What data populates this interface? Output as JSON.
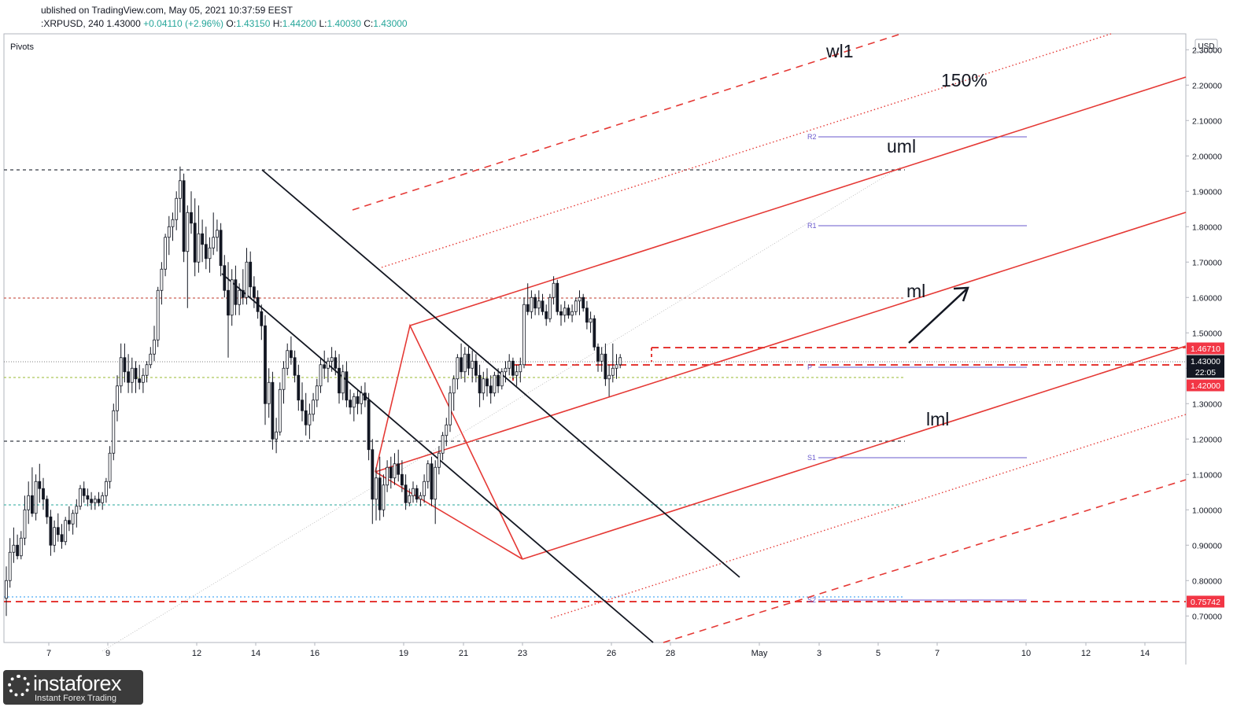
{
  "header": {
    "published": "ublished on TradingView.com, May 05, 2021 10:37:59 EEST",
    "symbol": ":XRPUSD, 240",
    "last": "1.43000",
    "change": "+0.04110 (+2.96%)",
    "o_label": "O:",
    "o": "1.43150",
    "h_label": "H:",
    "h": "1.44200",
    "l_label": "L:",
    "l": "1.40030",
    "c_label": "C:",
    "c": "1.43000"
  },
  "indicator_label": "Pivots",
  "currency": "USD",
  "logo": {
    "brand": "instaforex",
    "tagline": "Instant Forex Trading"
  },
  "chart_data": {
    "type": "candlestick",
    "ylim": [
      0.625,
      2.345
    ],
    "y_ticks": [
      0.7,
      0.8,
      0.9,
      1.0,
      1.1,
      1.2,
      1.3,
      1.4,
      1.5,
      1.6,
      1.7,
      1.8,
      1.9,
      2.0,
      2.1,
      2.2,
      2.3
    ],
    "y_tick_labels": [
      "0.70000",
      "0.80000",
      "0.90000",
      "1.00000",
      "1.10000",
      "1.20000",
      "1.30000",
      "1.40000",
      "1.50000",
      "1.60000",
      "1.70000",
      "1.80000",
      "1.90000",
      "2.00000",
      "2.10000",
      "2.20000",
      "2.30000"
    ],
    "x_tick_labels": [
      "7",
      "9",
      "12",
      "14",
      "16",
      "19",
      "21",
      "23",
      "26",
      "28",
      "May",
      "3",
      "5",
      "7",
      "10",
      "12",
      "14"
    ],
    "price_labels": [
      {
        "label": "1.46710",
        "value": 1.4671,
        "color": "#f23645",
        "text_color": "#ffffff"
      },
      {
        "label": "1.43000",
        "value": 1.43,
        "color": "#131722",
        "text_color": "#ffffff"
      },
      {
        "label": "22:05",
        "value": 1.403,
        "color": "#131722",
        "text_color": "#ffffff"
      },
      {
        "label": "1.42000",
        "value": 1.42,
        "color": "#f23645",
        "text_color": "#ffffff"
      },
      {
        "label": "0.75742",
        "value": 0.75742,
        "color": "#f23645",
        "text_color": "#ffffff"
      }
    ],
    "pivots": [
      {
        "label": "R2",
        "value": 2.06
      },
      {
        "label": "R1",
        "value": 1.81
      },
      {
        "label": "P",
        "value": 1.42
      },
      {
        "label": "S1",
        "value": 1.165
      },
      {
        "label": "S2",
        "value": 0.757
      }
    ],
    "annotations": [
      "wl1",
      "150%",
      "uml",
      "ml",
      "lml"
    ],
    "candles": [
      [
        0.75,
        0.84,
        0.7,
        0.8
      ],
      [
        0.8,
        0.92,
        0.78,
        0.88
      ],
      [
        0.88,
        0.95,
        0.85,
        0.9
      ],
      [
        0.9,
        0.93,
        0.86,
        0.87
      ],
      [
        0.87,
        0.94,
        0.86,
        0.92
      ],
      [
        0.92,
        1.04,
        0.9,
        1.0
      ],
      [
        1.0,
        1.08,
        0.96,
        1.04
      ],
      [
        1.04,
        1.12,
        0.98,
        0.99
      ],
      [
        0.99,
        1.1,
        0.97,
        1.08
      ],
      [
        1.08,
        1.13,
        1.02,
        1.06
      ],
      [
        1.06,
        1.09,
        1.0,
        1.03
      ],
      [
        1.03,
        1.04,
        0.96,
        0.98
      ],
      [
        0.98,
        1.0,
        0.87,
        0.9
      ],
      [
        0.9,
        0.97,
        0.88,
        0.95
      ],
      [
        0.95,
        0.99,
        0.91,
        0.93
      ],
      [
        0.93,
        0.96,
        0.89,
        0.91
      ],
      [
        0.91,
        0.98,
        0.9,
        0.97
      ],
      [
        0.97,
        1.01,
        0.94,
        0.96
      ],
      [
        0.96,
        1.0,
        0.93,
        0.99
      ],
      [
        0.99,
        1.03,
        0.95,
        1.01
      ],
      [
        1.01,
        1.07,
        1.0,
        1.06
      ],
      [
        1.06,
        1.08,
        1.02,
        1.04
      ],
      [
        1.04,
        1.06,
        1.01,
        1.03
      ],
      [
        1.03,
        1.05,
        1.0,
        1.02
      ],
      [
        1.02,
        1.04,
        1.0,
        1.03
      ],
      [
        1.03,
        1.05,
        1.01,
        1.02
      ],
      [
        1.02,
        1.05,
        1.0,
        1.04
      ],
      [
        1.04,
        1.09,
        1.02,
        1.08
      ],
      [
        1.08,
        1.18,
        1.06,
        1.16
      ],
      [
        1.16,
        1.3,
        1.14,
        1.28
      ],
      [
        1.28,
        1.38,
        1.25,
        1.35
      ],
      [
        1.35,
        1.47,
        1.33,
        1.43
      ],
      [
        1.43,
        1.47,
        1.36,
        1.39
      ],
      [
        1.39,
        1.44,
        1.33,
        1.36
      ],
      [
        1.36,
        1.43,
        1.33,
        1.4
      ],
      [
        1.4,
        1.42,
        1.33,
        1.37
      ],
      [
        1.37,
        1.41,
        1.34,
        1.36
      ],
      [
        1.36,
        1.4,
        1.33,
        1.38
      ],
      [
        1.38,
        1.42,
        1.36,
        1.41
      ],
      [
        1.41,
        1.46,
        1.4,
        1.44
      ],
      [
        1.44,
        1.52,
        1.42,
        1.48
      ],
      [
        1.48,
        1.63,
        1.46,
        1.62
      ],
      [
        1.62,
        1.7,
        1.58,
        1.68
      ],
      [
        1.68,
        1.78,
        1.66,
        1.77
      ],
      [
        1.77,
        1.83,
        1.72,
        1.8
      ],
      [
        1.8,
        1.84,
        1.76,
        1.82
      ],
      [
        1.82,
        1.9,
        1.79,
        1.88
      ],
      [
        1.88,
        1.97,
        1.84,
        1.93
      ],
      [
        1.93,
        1.95,
        1.7,
        1.73
      ],
      [
        1.73,
        1.86,
        1.57,
        1.84
      ],
      [
        1.84,
        1.9,
        1.78,
        1.81
      ],
      [
        1.81,
        1.88,
        1.66,
        1.7
      ],
      [
        1.7,
        1.86,
        1.67,
        1.78
      ],
      [
        1.78,
        1.82,
        1.7,
        1.75
      ],
      [
        1.75,
        1.8,
        1.68,
        1.71
      ],
      [
        1.71,
        1.77,
        1.67,
        1.74
      ],
      [
        1.74,
        1.84,
        1.72,
        1.77
      ],
      [
        1.77,
        1.82,
        1.73,
        1.79
      ],
      [
        1.79,
        1.81,
        1.66,
        1.69
      ],
      [
        1.69,
        1.72,
        1.6,
        1.62
      ],
      [
        1.62,
        1.7,
        1.43,
        1.55
      ],
      [
        1.55,
        1.68,
        1.52,
        1.65
      ],
      [
        1.65,
        1.69,
        1.55,
        1.58
      ],
      [
        1.58,
        1.64,
        1.55,
        1.62
      ],
      [
        1.62,
        1.68,
        1.58,
        1.6
      ],
      [
        1.6,
        1.74,
        1.58,
        1.7
      ],
      [
        1.7,
        1.73,
        1.6,
        1.63
      ],
      [
        1.63,
        1.66,
        1.57,
        1.6
      ],
      [
        1.6,
        1.62,
        1.54,
        1.56
      ],
      [
        1.56,
        1.58,
        1.48,
        1.52
      ],
      [
        1.52,
        1.55,
        1.24,
        1.3
      ],
      [
        1.3,
        1.4,
        1.26,
        1.36
      ],
      [
        1.36,
        1.39,
        1.17,
        1.2
      ],
      [
        1.2,
        1.26,
        1.16,
        1.22
      ],
      [
        1.22,
        1.36,
        1.21,
        1.34
      ],
      [
        1.34,
        1.42,
        1.3,
        1.4
      ],
      [
        1.4,
        1.47,
        1.38,
        1.45
      ],
      [
        1.45,
        1.49,
        1.41,
        1.43
      ],
      [
        1.43,
        1.45,
        1.36,
        1.38
      ],
      [
        1.38,
        1.41,
        1.28,
        1.31
      ],
      [
        1.31,
        1.36,
        1.25,
        1.28
      ],
      [
        1.28,
        1.33,
        1.21,
        1.24
      ],
      [
        1.24,
        1.3,
        1.2,
        1.27
      ],
      [
        1.27,
        1.33,
        1.25,
        1.31
      ],
      [
        1.31,
        1.37,
        1.29,
        1.35
      ],
      [
        1.35,
        1.43,
        1.33,
        1.41
      ],
      [
        1.41,
        1.45,
        1.37,
        1.4
      ],
      [
        1.4,
        1.43,
        1.36,
        1.42
      ],
      [
        1.42,
        1.46,
        1.39,
        1.43
      ],
      [
        1.43,
        1.45,
        1.38,
        1.4
      ],
      [
        1.4,
        1.44,
        1.3,
        1.33
      ],
      [
        1.33,
        1.41,
        1.31,
        1.39
      ],
      [
        1.39,
        1.42,
        1.29,
        1.31
      ],
      [
        1.31,
        1.34,
        1.27,
        1.29
      ],
      [
        1.29,
        1.33,
        1.25,
        1.32
      ],
      [
        1.32,
        1.34,
        1.27,
        1.3
      ],
      [
        1.3,
        1.35,
        1.27,
        1.33
      ],
      [
        1.33,
        1.36,
        1.29,
        1.31
      ],
      [
        1.31,
        1.33,
        1.14,
        1.17
      ],
      [
        1.17,
        1.2,
        0.96,
        1.03
      ],
      [
        1.03,
        1.12,
        0.97,
        1.09
      ],
      [
        1.09,
        1.15,
        0.97,
        1.0
      ],
      [
        1.0,
        1.1,
        0.98,
        1.07
      ],
      [
        1.07,
        1.14,
        1.05,
        1.12
      ],
      [
        1.12,
        1.15,
        1.06,
        1.09
      ],
      [
        1.09,
        1.16,
        1.07,
        1.13
      ],
      [
        1.13,
        1.17,
        1.08,
        1.1
      ],
      [
        1.1,
        1.14,
        1.05,
        1.07
      ],
      [
        1.07,
        1.1,
        1.0,
        1.02
      ],
      [
        1.02,
        1.06,
        1.01,
        1.04
      ],
      [
        1.04,
        1.08,
        1.02,
        1.06
      ],
      [
        1.06,
        1.07,
        1.02,
        1.03
      ],
      [
        1.03,
        1.05,
        1.01,
        1.04
      ],
      [
        1.04,
        1.1,
        1.02,
        1.08
      ],
      [
        1.08,
        1.14,
        1.06,
        1.13
      ],
      [
        1.13,
        1.15,
        1.01,
        1.03
      ],
      [
        1.03,
        1.14,
        0.96,
        1.12
      ],
      [
        1.12,
        1.18,
        1.1,
        1.16
      ],
      [
        1.16,
        1.22,
        1.14,
        1.21
      ],
      [
        1.21,
        1.26,
        1.18,
        1.24
      ],
      [
        1.24,
        1.35,
        1.22,
        1.33
      ],
      [
        1.33,
        1.38,
        1.28,
        1.37
      ],
      [
        1.37,
        1.44,
        1.34,
        1.43
      ],
      [
        1.43,
        1.47,
        1.37,
        1.39
      ],
      [
        1.39,
        1.46,
        1.36,
        1.44
      ],
      [
        1.44,
        1.46,
        1.38,
        1.4
      ],
      [
        1.4,
        1.45,
        1.36,
        1.42
      ],
      [
        1.42,
        1.44,
        1.36,
        1.38
      ],
      [
        1.38,
        1.41,
        1.29,
        1.33
      ],
      [
        1.33,
        1.39,
        1.31,
        1.37
      ],
      [
        1.37,
        1.4,
        1.32,
        1.35
      ],
      [
        1.35,
        1.38,
        1.3,
        1.33
      ],
      [
        1.33,
        1.39,
        1.32,
        1.38
      ],
      [
        1.38,
        1.4,
        1.33,
        1.35
      ],
      [
        1.35,
        1.4,
        1.34,
        1.39
      ],
      [
        1.39,
        1.42,
        1.36,
        1.4
      ],
      [
        1.4,
        1.44,
        1.38,
        1.42
      ],
      [
        1.42,
        1.43,
        1.37,
        1.38
      ],
      [
        1.38,
        1.41,
        1.35,
        1.39
      ],
      [
        1.39,
        1.43,
        1.36,
        1.41
      ],
      [
        1.41,
        1.6,
        1.4,
        1.58
      ],
      [
        1.58,
        1.64,
        1.55,
        1.56
      ],
      [
        1.56,
        1.62,
        1.54,
        1.6
      ],
      [
        1.6,
        1.61,
        1.55,
        1.57
      ],
      [
        1.57,
        1.62,
        1.55,
        1.59
      ],
      [
        1.59,
        1.61,
        1.55,
        1.56
      ],
      [
        1.56,
        1.58,
        1.52,
        1.54
      ],
      [
        1.54,
        1.61,
        1.53,
        1.6
      ],
      [
        1.6,
        1.66,
        1.58,
        1.64
      ],
      [
        1.64,
        1.65,
        1.55,
        1.56
      ],
      [
        1.56,
        1.58,
        1.52,
        1.55
      ],
      [
        1.55,
        1.59,
        1.53,
        1.57
      ],
      [
        1.57,
        1.58,
        1.54,
        1.55
      ],
      [
        1.55,
        1.58,
        1.53,
        1.56
      ],
      [
        1.56,
        1.6,
        1.55,
        1.59
      ],
      [
        1.59,
        1.62,
        1.55,
        1.6
      ],
      [
        1.6,
        1.61,
        1.56,
        1.57
      ],
      [
        1.57,
        1.59,
        1.51,
        1.53
      ],
      [
        1.53,
        1.56,
        1.5,
        1.54
      ],
      [
        1.54,
        1.55,
        1.45,
        1.46
      ],
      [
        1.46,
        1.47,
        1.39,
        1.42
      ],
      [
        1.42,
        1.46,
        1.39,
        1.44
      ],
      [
        1.44,
        1.47,
        1.35,
        1.37
      ],
      [
        1.37,
        1.41,
        1.32,
        1.38
      ],
      [
        1.38,
        1.47,
        1.36,
        1.4
      ],
      [
        1.4,
        1.44,
        1.37,
        1.41
      ],
      [
        1.41,
        1.44,
        1.4,
        1.43
      ]
    ]
  }
}
